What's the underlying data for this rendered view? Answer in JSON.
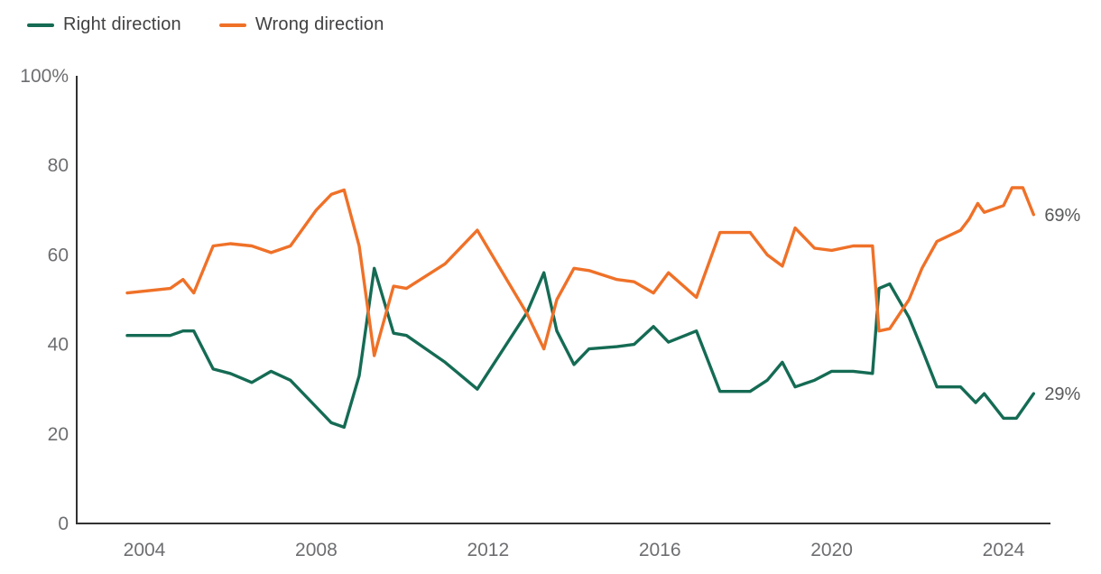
{
  "legend": {
    "items": [
      {
        "label": "Right direction",
        "color": "#156b54"
      },
      {
        "label": "Wrong direction",
        "color": "#ef7128"
      }
    ]
  },
  "colors": {
    "right_direction": "#156b54",
    "wrong_direction": "#ef7128",
    "axis": "#333132",
    "tick_text": "#6d6e71",
    "end_label_text": "#58595b"
  },
  "chart_data": {
    "type": "line",
    "title": "",
    "xlabel": "",
    "ylabel": "",
    "grid": false,
    "legend_position": "top-left",
    "xlim": [
      2003.3,
      2025.1
    ],
    "ylim": [
      0,
      100
    ],
    "x_ticks": [
      {
        "value": 2004,
        "label": "2004"
      },
      {
        "value": 2008,
        "label": "2008"
      },
      {
        "value": 2012,
        "label": "2012"
      },
      {
        "value": 2016,
        "label": "2016"
      },
      {
        "value": 2020,
        "label": "2020"
      },
      {
        "value": 2024,
        "label": "2024"
      }
    ],
    "y_ticks": [
      {
        "value": 100,
        "label": "100%"
      },
      {
        "value": 80,
        "label": "80"
      },
      {
        "value": 60,
        "label": "60"
      },
      {
        "value": 40,
        "label": "40"
      },
      {
        "value": 20,
        "label": "20"
      },
      {
        "value": 0,
        "label": "0"
      }
    ],
    "series": [
      {
        "name": "Right direction",
        "color": "#156b54",
        "end_label": "29%",
        "points": [
          [
            2003.6,
            42
          ],
          [
            2004.6,
            42
          ],
          [
            2004.9,
            43
          ],
          [
            2005.15,
            43
          ],
          [
            2005.6,
            34.5
          ],
          [
            2006.0,
            33.5
          ],
          [
            2006.5,
            31.5
          ],
          [
            2006.95,
            34
          ],
          [
            2007.4,
            32
          ],
          [
            2008.0,
            26
          ],
          [
            2008.35,
            22.5
          ],
          [
            2008.65,
            21.5
          ],
          [
            2009.0,
            33
          ],
          [
            2009.35,
            57
          ],
          [
            2009.8,
            42.5
          ],
          [
            2010.1,
            42
          ],
          [
            2011.0,
            36
          ],
          [
            2011.75,
            30
          ],
          [
            2012.9,
            47
          ],
          [
            2013.3,
            56
          ],
          [
            2013.6,
            43
          ],
          [
            2014.0,
            35.5
          ],
          [
            2014.35,
            39
          ],
          [
            2015.0,
            39.5
          ],
          [
            2015.4,
            40
          ],
          [
            2015.85,
            44
          ],
          [
            2016.2,
            40.5
          ],
          [
            2016.85,
            43
          ],
          [
            2017.4,
            29.5
          ],
          [
            2018.1,
            29.5
          ],
          [
            2018.5,
            32
          ],
          [
            2018.85,
            36
          ],
          [
            2019.15,
            30.5
          ],
          [
            2019.6,
            32
          ],
          [
            2020.0,
            34
          ],
          [
            2020.5,
            34
          ],
          [
            2020.95,
            33.5
          ],
          [
            2021.1,
            52.5
          ],
          [
            2021.35,
            53.5
          ],
          [
            2021.8,
            46
          ],
          [
            2022.1,
            39
          ],
          [
            2022.45,
            30.5
          ],
          [
            2023.0,
            30.5
          ],
          [
            2023.35,
            27
          ],
          [
            2023.55,
            29
          ],
          [
            2024.0,
            23.5
          ],
          [
            2024.3,
            23.5
          ],
          [
            2024.7,
            29
          ]
        ]
      },
      {
        "name": "Wrong direction",
        "color": "#ef7128",
        "end_label": "69%",
        "points": [
          [
            2003.6,
            51.5
          ],
          [
            2004.6,
            52.5
          ],
          [
            2004.9,
            54.5
          ],
          [
            2005.15,
            51.5
          ],
          [
            2005.6,
            62
          ],
          [
            2006.0,
            62.5
          ],
          [
            2006.5,
            62
          ],
          [
            2006.95,
            60.5
          ],
          [
            2007.4,
            62
          ],
          [
            2008.0,
            70
          ],
          [
            2008.35,
            73.5
          ],
          [
            2008.65,
            74.5
          ],
          [
            2009.0,
            62
          ],
          [
            2009.35,
            37.5
          ],
          [
            2009.8,
            53
          ],
          [
            2010.1,
            52.5
          ],
          [
            2011.0,
            58
          ],
          [
            2011.75,
            65.5
          ],
          [
            2012.9,
            47
          ],
          [
            2013.3,
            39
          ],
          [
            2013.6,
            50
          ],
          [
            2014.0,
            57
          ],
          [
            2014.35,
            56.5
          ],
          [
            2015.0,
            54.5
          ],
          [
            2015.4,
            54
          ],
          [
            2015.85,
            51.5
          ],
          [
            2016.2,
            56
          ],
          [
            2016.85,
            50.5
          ],
          [
            2017.4,
            65
          ],
          [
            2018.1,
            65
          ],
          [
            2018.5,
            60
          ],
          [
            2018.85,
            57.5
          ],
          [
            2019.15,
            66
          ],
          [
            2019.6,
            61.5
          ],
          [
            2020.0,
            61
          ],
          [
            2020.5,
            62
          ],
          [
            2020.95,
            62
          ],
          [
            2021.1,
            43
          ],
          [
            2021.35,
            43.5
          ],
          [
            2021.8,
            50
          ],
          [
            2022.1,
            57
          ],
          [
            2022.45,
            63
          ],
          [
            2023.0,
            65.5
          ],
          [
            2023.2,
            68
          ],
          [
            2023.4,
            71.5
          ],
          [
            2023.55,
            69.5
          ],
          [
            2024.0,
            71
          ],
          [
            2024.2,
            75
          ],
          [
            2024.45,
            75
          ],
          [
            2024.7,
            69
          ]
        ]
      }
    ]
  }
}
